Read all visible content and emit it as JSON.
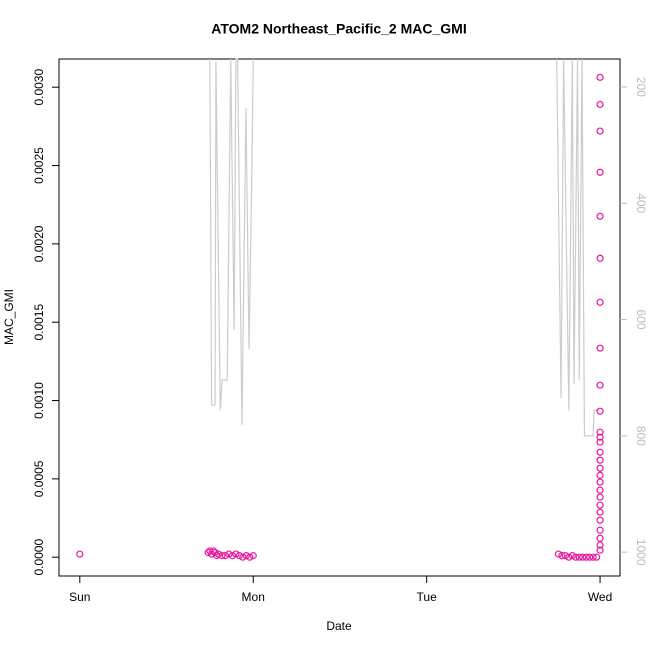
{
  "chart_data": {
    "type": "scatter",
    "title": "ATOM2 Northeast_Pacific_2 MAC_GMI",
    "x_label": "Date",
    "y_label": "MAC_GMI",
    "xlim": [
      -0.12,
      3.115
    ],
    "xticks": [
      {
        "value": 0,
        "label": "Sun"
      },
      {
        "value": 1,
        "label": "Mon"
      },
      {
        "value": 2,
        "label": "Tue"
      },
      {
        "value": 3,
        "label": "Wed"
      }
    ],
    "ylim": [
      -0.00012,
      0.00318
    ],
    "yticks": [
      {
        "value": 0,
        "label": "0.0000"
      },
      {
        "value": 0.0005,
        "label": "0.0005"
      },
      {
        "value": 0.001,
        "label": "0.0010"
      },
      {
        "value": 0.0015,
        "label": "0.0015"
      },
      {
        "value": 0.002,
        "label": "0.0020"
      },
      {
        "value": 0.0025,
        "label": "0.0025"
      },
      {
        "value": 0.003,
        "label": "0.0030"
      }
    ],
    "y2lim": [
      1041,
      152
    ],
    "y2ticks": [
      200,
      400,
      600,
      800,
      1000
    ],
    "series": [
      {
        "color": "#e8179e",
        "x": [
          0,
          0.74,
          0.75,
          0.76,
          0.77,
          0.78,
          0.79,
          0.8,
          0.82,
          0.84,
          0.86,
          0.88,
          0.9,
          0.92,
          0.94,
          0.96,
          0.98,
          1.0,
          2.76,
          2.78,
          2.8,
          2.82,
          2.84,
          2.86,
          2.88,
          2.9,
          2.92,
          2.94,
          2.96,
          2.98,
          3.0,
          3.0,
          3.0,
          3.0,
          3.0,
          3.0,
          3.0,
          3.0,
          3.0,
          3.0,
          3.0,
          3.0,
          3.0,
          3.0,
          3.0,
          3.0,
          3.0,
          3.0,
          3.0,
          3.0,
          3.0,
          3.0,
          3.0,
          3.0,
          3.0,
          3.0,
          3.0
        ],
        "values": [
          2e-05,
          3e-05,
          4e-05,
          2e-05,
          4e-05,
          3e-05,
          1e-05,
          2e-05,
          1e-05,
          1e-05,
          2e-05,
          1e-05,
          2e-05,
          1e-05,
          0,
          1e-05,
          0,
          1e-05,
          2e-05,
          1e-05,
          1e-05,
          0,
          1e-05,
          0,
          0,
          0,
          0,
          0,
          0,
          0,
          0.003063,
          0.00289,
          0.00272,
          0.002457,
          0.002176,
          0.001908,
          0.001627,
          0.001334,
          0.001098,
          0.000932,
          0.000798,
          0.000766,
          0.000734,
          0.00067,
          0.000619,
          0.000568,
          0.000523,
          0.000479,
          0.000428,
          0.000383,
          0.000332,
          0.000287,
          0.000236,
          0.000172,
          0.000121,
          7.7e-05,
          4.5e-05
        ]
      },
      {
        "color": "#cccccc",
        "axis": "y2",
        "type": "line",
        "x": [
          0.75,
          0.76,
          0.78,
          0.785,
          0.81,
          0.82,
          0.85,
          0.87,
          0.89,
          0.9,
          0.91,
          0.935,
          0.958,
          0.976,
          0.993,
          1.0,
          null,
          2.75,
          2.775,
          2.79,
          2.82,
          2.84,
          2.85,
          2.87,
          2.88,
          2.896,
          2.91,
          2.96,
          2.965,
          3.0
        ],
        "values": [
          152,
          747,
          747,
          157,
          756,
          704,
          704,
          152,
          618,
          152,
          152,
          781,
          236,
          652,
          326,
          152,
          null,
          152,
          735,
          152,
          756,
          152,
          711,
          152,
          704,
          152,
          800,
          800,
          756,
          756
        ]
      }
    ]
  }
}
